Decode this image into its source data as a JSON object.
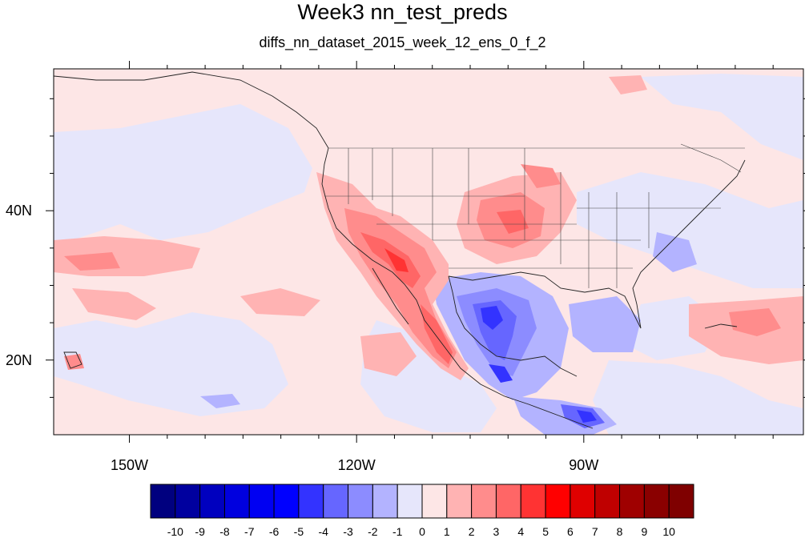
{
  "title": "Week3 nn_test_preds",
  "subtitle": "diffs_nn_dataset_2015_week_12_ens_0_f_2",
  "map": {
    "lat_labels": [
      "40N",
      "20N"
    ],
    "lon_labels": [
      "150W",
      "120W",
      "90W"
    ],
    "lat_range": [
      10,
      59
    ],
    "lon_range": [
      -160,
      -61
    ],
    "lat_ticks": [
      40,
      20
    ],
    "lon_ticks": [
      -150,
      -120,
      -90
    ]
  },
  "colorbar": {
    "levels": [
      "-10",
      "-9",
      "-8",
      "-7",
      "-6",
      "-5",
      "-4",
      "-3",
      "-2",
      "-1",
      "0",
      "1",
      "2",
      "3",
      "4",
      "5",
      "6",
      "7",
      "8",
      "9",
      "10"
    ],
    "colors": [
      "#00007f",
      "#00009f",
      "#0000bf",
      "#0000df",
      "#0000f2",
      "#0000ff",
      "#3333ff",
      "#6666ff",
      "#8c8cff",
      "#b3b3ff",
      "#e6e6fb",
      "#fde6e6",
      "#ffb3b3",
      "#ff8c8c",
      "#ff6666",
      "#ff3333",
      "#ff0000",
      "#df0000",
      "#bf0000",
      "#9f0000",
      "#8a0000",
      "#7f0000"
    ]
  }
}
